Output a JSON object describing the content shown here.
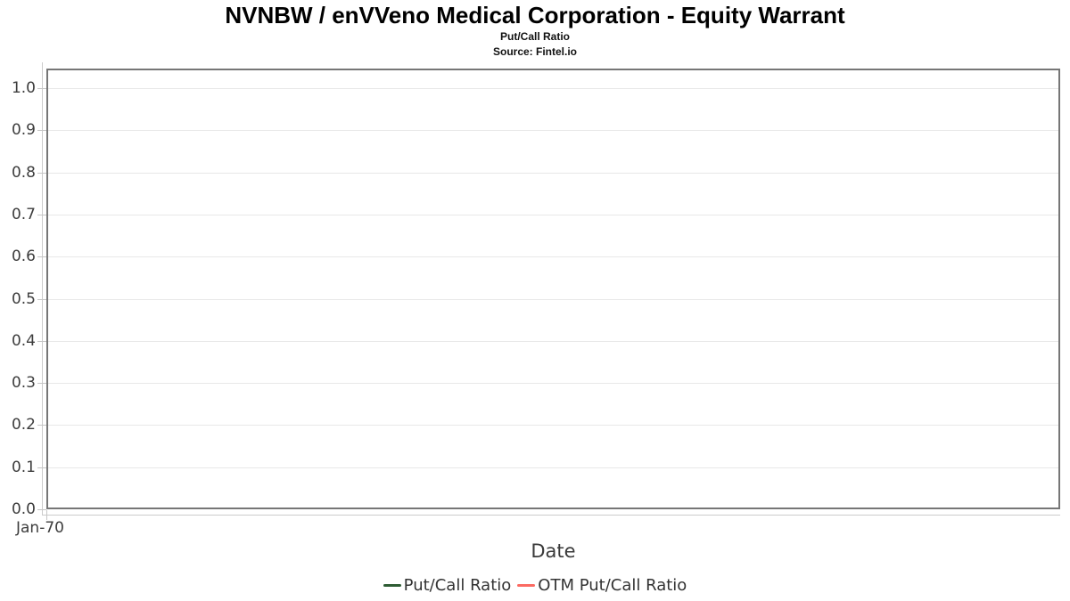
{
  "header": {
    "title": "NVNBW / enVVeno Medical Corporation - Equity Warrant",
    "subtitle": "Put/Call Ratio",
    "source": "Source: Fintel.io"
  },
  "chart_data": {
    "type": "line",
    "title": "NVNBW / enVVeno Medical Corporation - Equity Warrant",
    "subtitle": "Put/Call Ratio",
    "source": "Source: Fintel.io",
    "xlabel": "Date",
    "ylabel": "",
    "ylim": [
      0.0,
      1.0
    ],
    "y_ticks": [
      "0.0",
      "0.1",
      "0.2",
      "0.3",
      "0.4",
      "0.5",
      "0.6",
      "0.7",
      "0.8",
      "0.9",
      "1.0"
    ],
    "x_ticks": [
      "Jan-70"
    ],
    "grid": "horizontal-only",
    "legend_position": "bottom-center",
    "series": [
      {
        "name": "Put/Call Ratio",
        "color": "#2e5c34",
        "points": []
      },
      {
        "name": "OTM Put/Call Ratio",
        "color": "#fb6a62",
        "points": []
      }
    ]
  }
}
